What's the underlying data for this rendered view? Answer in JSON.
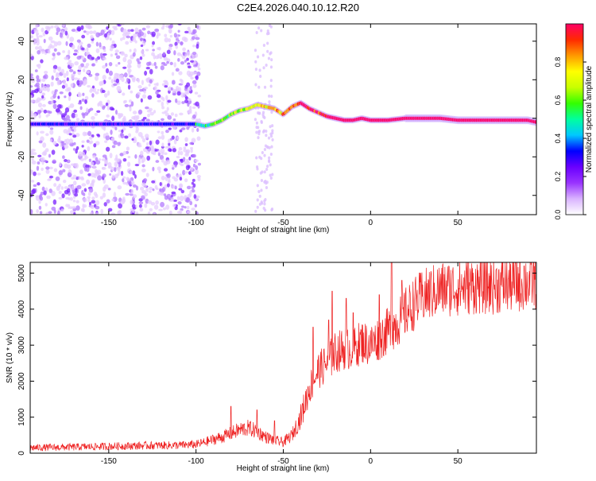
{
  "title": "C2E4.2026.040.10.12.R20",
  "chart_data": [
    {
      "type": "heatmap",
      "xlabel": "Height of straight line (km)",
      "ylabel": "Frequency (Hz)",
      "xlim": [
        -195,
        95
      ],
      "ylim": [
        -50,
        49
      ],
      "xticks": [
        -150,
        -100,
        -50,
        0,
        50
      ],
      "yticks": [
        -40,
        -20,
        0,
        20,
        40
      ],
      "ridge": {
        "x": [
          -195,
          -180,
          -165,
          -155,
          -145,
          -135,
          -125,
          -115,
          -105,
          -100,
          -95,
          -90,
          -85,
          -80,
          -75,
          -70,
          -65,
          -60,
          -55,
          -50,
          -45,
          -40,
          -35,
          -30,
          -25,
          -20,
          -15,
          -10,
          -5,
          0,
          10,
          20,
          30,
          40,
          50,
          60,
          70,
          80,
          90,
          95
        ],
        "freq": [
          -3,
          -3,
          -3,
          -3,
          -3,
          -3,
          -3,
          -3,
          -3,
          -3,
          -4,
          -3,
          -1,
          2,
          4,
          5,
          7,
          6,
          5,
          2,
          6,
          8,
          5,
          3,
          1,
          0,
          -1,
          -1,
          0,
          -1,
          -1,
          0,
          0,
          0,
          -1,
          -1,
          -1,
          -1,
          -1,
          -2
        ]
      },
      "colorbar": {
        "label": "Normalized spectral amplitude",
        "range": [
          0,
          1
        ],
        "ticks": [
          0.0,
          0.2,
          0.4,
          0.6,
          0.8
        ],
        "tick_labels": [
          "0.0",
          "0.2",
          "0.4",
          "0.6",
          "0.8"
        ],
        "colors": [
          "#ffffff",
          "#d9b3ff",
          "#9933ff",
          "#6a00ff",
          "#0000ff",
          "#00c8ff",
          "#00ff9f",
          "#33ff00",
          "#c8ff00",
          "#ffff00",
          "#ff9900",
          "#ff2a00",
          "#ff0066"
        ]
      }
    },
    {
      "type": "line",
      "xlabel": "Height of straight line (km)",
      "ylabel": "SNR (10 * v/v)",
      "xlim": [
        -195,
        95
      ],
      "ylim": [
        0,
        5300
      ],
      "xticks": [
        -150,
        -100,
        -50,
        0,
        50
      ],
      "yticks": [
        0,
        1000,
        2000,
        3000,
        4000,
        5000
      ],
      "line_color": "#ee2222",
      "trend": {
        "x": [
          -195,
          -170,
          -150,
          -130,
          -110,
          -100,
          -95,
          -90,
          -85,
          -80,
          -75,
          -70,
          -65,
          -60,
          -55,
          -50,
          -45,
          -40,
          -35,
          -30,
          -25,
          -20,
          -15,
          -10,
          -5,
          0,
          5,
          10,
          15,
          20,
          25,
          30,
          40,
          50,
          60,
          70,
          80,
          90,
          95
        ],
        "y": [
          150,
          170,
          190,
          210,
          220,
          240,
          300,
          380,
          450,
          550,
          650,
          700,
          600,
          450,
          350,
          300,
          500,
          1000,
          1800,
          2300,
          2500,
          2800,
          2900,
          2900,
          3100,
          3000,
          3200,
          3400,
          3600,
          3900,
          4150,
          4350,
          4550,
          4600,
          4650,
          4650,
          4700,
          4750,
          4800
        ]
      },
      "spikes": [
        {
          "x": -80,
          "y": 1300
        },
        {
          "x": -65,
          "y": 1200
        },
        {
          "x": -55,
          "y": 900
        },
        {
          "x": -33,
          "y": 3500
        },
        {
          "x": -24,
          "y": 3700
        },
        {
          "x": -22,
          "y": 4500
        },
        {
          "x": -14,
          "y": 4300
        },
        {
          "x": -10,
          "y": 3900
        },
        {
          "x": 5,
          "y": 4400
        },
        {
          "x": 12,
          "y": 5300
        },
        {
          "x": 18,
          "y": 4800
        },
        {
          "x": 88,
          "y": 5200
        }
      ]
    }
  ]
}
